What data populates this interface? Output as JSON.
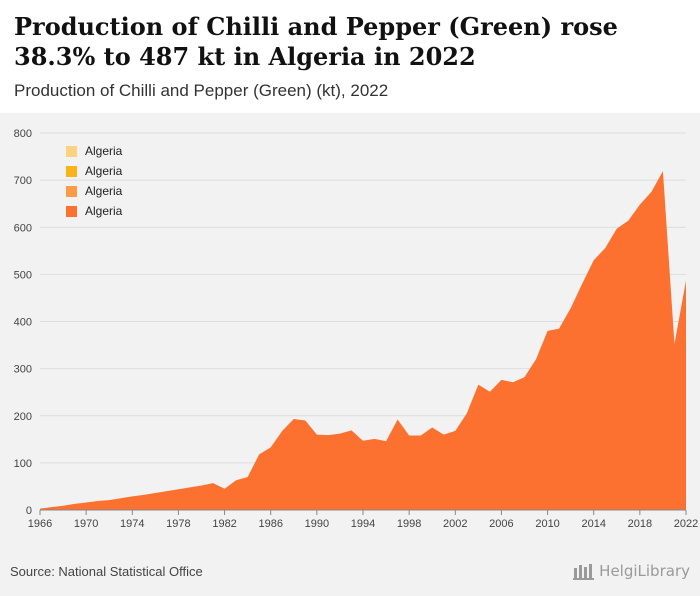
{
  "header": {
    "title": "Production of Chilli and Pepper (Green) rose 38.3% to 487 kt in Algeria in 2022",
    "subtitle": "Production of Chilli and Pepper (Green) (kt), 2022"
  },
  "legend": {
    "items": [
      {
        "label": "Algeria",
        "color": "#fdd27e"
      },
      {
        "label": "Algeria",
        "color": "#fbb31a"
      },
      {
        "label": "Algeria",
        "color": "#fd9a45"
      },
      {
        "label": "Algeria",
        "color": "#fd7130"
      }
    ]
  },
  "footer": {
    "source": "Source: National Statistical Office",
    "logo_text": "HelgiLibrary"
  },
  "chart_data": {
    "type": "area",
    "title": "Production of Chilli and Pepper (Green) rose 38.3% to 487 kt in Algeria in 2022",
    "subtitle": "Production of Chilli and Pepper (Green) (kt), 2022",
    "xlabel": "",
    "ylabel": "",
    "x": [
      1966,
      1967,
      1968,
      1969,
      1970,
      1971,
      1972,
      1973,
      1974,
      1975,
      1976,
      1977,
      1978,
      1979,
      1980,
      1981,
      1982,
      1983,
      1984,
      1985,
      1986,
      1987,
      1988,
      1989,
      1990,
      1991,
      1992,
      1993,
      1994,
      1995,
      1996,
      1997,
      1998,
      1999,
      2000,
      2001,
      2002,
      2003,
      2004,
      2005,
      2006,
      2007,
      2008,
      2009,
      2010,
      2011,
      2012,
      2013,
      2014,
      2015,
      2016,
      2017,
      2018,
      2019,
      2020,
      2021,
      2022
    ],
    "series": [
      {
        "name": "Algeria",
        "color": "#fd7130",
        "values": [
          3,
          6,
          9,
          13,
          16,
          19,
          21,
          25,
          29,
          32,
          36,
          40,
          44,
          48,
          52,
          57,
          45,
          63,
          70,
          118,
          133,
          168,
          193,
          190,
          160,
          159,
          162,
          169,
          147,
          151,
          146,
          192,
          158,
          158,
          175,
          160,
          168,
          205,
          266,
          251,
          276,
          271,
          282,
          320,
          380,
          385,
          428,
          480,
          530,
          556,
          597,
          614,
          648,
          675,
          719,
          352,
          487
        ]
      }
    ],
    "xticks": [
      1966,
      1970,
      1974,
      1978,
      1982,
      1986,
      1990,
      1994,
      1998,
      2002,
      2006,
      2010,
      2014,
      2018,
      2022
    ],
    "yticks": [
      0,
      100,
      200,
      300,
      400,
      500,
      600,
      700,
      800
    ],
    "xlim": [
      1966,
      2022
    ],
    "ylim": [
      0,
      800
    ],
    "grid": true,
    "legend_position": "top-left"
  }
}
